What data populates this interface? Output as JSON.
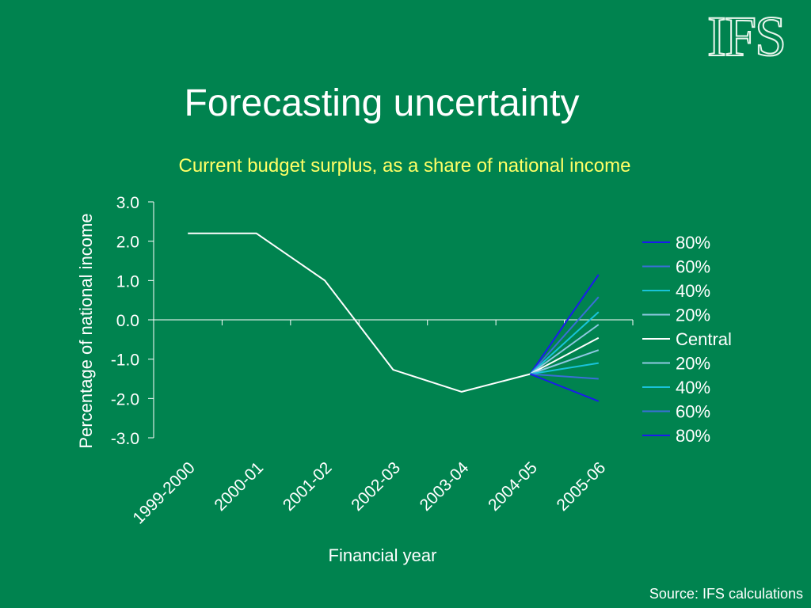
{
  "logo": {
    "text": "IFS"
  },
  "slide": {
    "title": "Forecasting uncertainty",
    "source": "Source: IFS calculations"
  },
  "chart_data": {
    "type": "line",
    "subtitle": "Current budget surplus, as a share of national income",
    "xlabel": "Financial year",
    "ylabel": "Percentage of national income",
    "categories": [
      "1999-2000",
      "2000-01",
      "2001-02",
      "2002-03",
      "2003-04",
      "2004-05",
      "2005-06"
    ],
    "ylim": [
      -3.0,
      3.0
    ],
    "yticks": [
      3.0,
      2.0,
      1.0,
      0.0,
      -1.0,
      -2.0,
      -3.0
    ],
    "ytick_labels": [
      "3.0",
      "2.0",
      "1.0",
      "0.0",
      "-1.0",
      "-2.0",
      "-3.0"
    ],
    "grid": false,
    "legend_position": "right",
    "series": [
      {
        "name": "80%",
        "values": [
          null,
          null,
          null,
          null,
          null,
          -1.38,
          1.15
        ],
        "color": "#1a1aee"
      },
      {
        "name": "60%",
        "values": [
          null,
          null,
          null,
          null,
          null,
          -1.38,
          0.58
        ],
        "color": "#3a6fd8"
      },
      {
        "name": "40%",
        "values": [
          null,
          null,
          null,
          null,
          null,
          -1.38,
          0.2
        ],
        "color": "#19c3d9"
      },
      {
        "name": "20%",
        "values": [
          null,
          null,
          null,
          null,
          null,
          -1.38,
          -0.12
        ],
        "color": "#8fc9e3"
      },
      {
        "name": "Central",
        "values": [
          2.2,
          2.2,
          1.0,
          -1.27,
          -1.83,
          -1.38,
          -0.46
        ],
        "color": "#ffffff"
      },
      {
        "name": "20%",
        "values": [
          null,
          null,
          null,
          null,
          null,
          -1.38,
          -0.77
        ],
        "color": "#8fc9e3"
      },
      {
        "name": "40%",
        "values": [
          null,
          null,
          null,
          null,
          null,
          -1.38,
          -1.1
        ],
        "color": "#19c3d9"
      },
      {
        "name": "60%",
        "values": [
          null,
          null,
          null,
          null,
          null,
          -1.38,
          -1.5
        ],
        "color": "#3a6fd8"
      },
      {
        "name": "80%",
        "values": [
          null,
          null,
          null,
          null,
          null,
          -1.38,
          -2.07
        ],
        "color": "#1a1aee"
      }
    ]
  }
}
